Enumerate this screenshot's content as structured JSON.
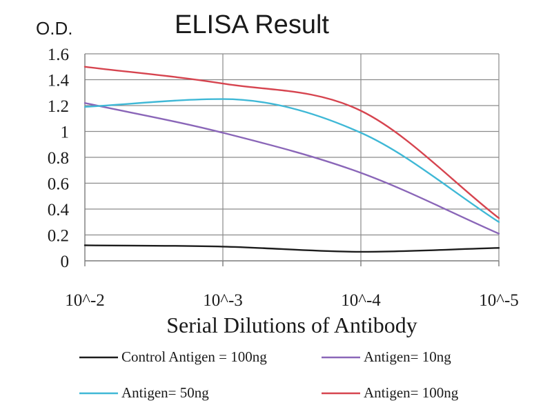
{
  "chart_data": {
    "type": "line",
    "title": "ELISA Result",
    "ylabel": "O.D.",
    "xlabel": "Serial Dilutions of Antibody",
    "categories": [
      "10^-2",
      "10^-3",
      "10^-4",
      "10^-5"
    ],
    "ylim": [
      0,
      1.6
    ],
    "yticks": [
      0,
      0.2,
      0.4,
      0.6,
      0.8,
      1,
      1.2,
      1.4,
      1.6
    ],
    "ytick_labels": [
      "0",
      "0.2",
      "0.4",
      "0.6",
      "0.8",
      "1",
      "1.2",
      "1.4",
      "1.6"
    ],
    "grid": true,
    "legend_position": "bottom",
    "series": [
      {
        "name": "Control Antigen = 100ng",
        "color": "#1c1c1c",
        "values": [
          0.12,
          0.11,
          0.07,
          0.1
        ]
      },
      {
        "name": "Antigen= 10ng",
        "color": "#8a66b8",
        "values": [
          1.22,
          0.99,
          0.68,
          0.21
        ]
      },
      {
        "name": "Antigen= 50ng",
        "color": "#3fb8d6",
        "values": [
          1.19,
          1.25,
          0.99,
          0.3
        ]
      },
      {
        "name": "Antigen= 100ng",
        "color": "#d6444f",
        "values": [
          1.5,
          1.37,
          1.16,
          0.33
        ]
      }
    ]
  }
}
